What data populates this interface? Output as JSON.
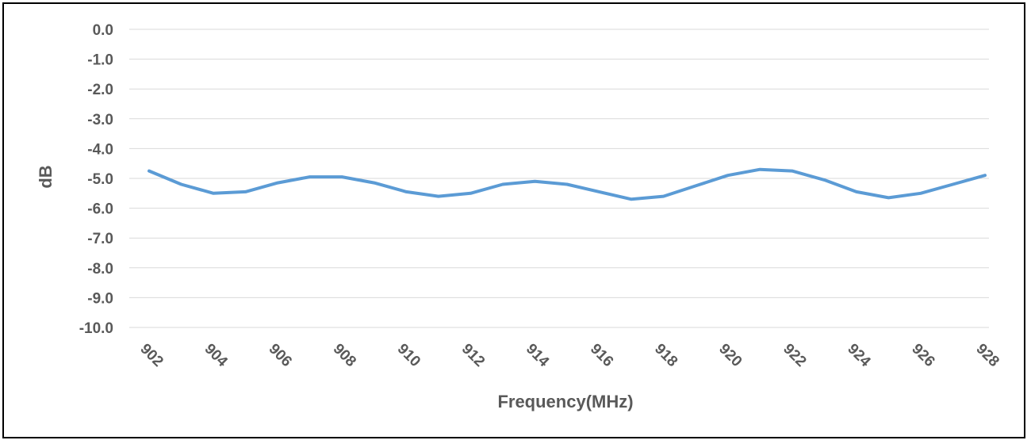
{
  "chart_data": {
    "type": "line",
    "title": "",
    "xlabel": "Frequency(MHz)",
    "ylabel": "dB",
    "xlim": [
      902,
      928
    ],
    "ylim": [
      -10,
      0
    ],
    "y_ticks": [
      0,
      -1,
      -2,
      -3,
      -4,
      -5,
      -6,
      -7,
      -8,
      -9,
      -10
    ],
    "y_tick_labels": [
      "0.0",
      "-1.0",
      "-2.0",
      "-3.0",
      "-4.0",
      "-5.0",
      "-6.0",
      "-7.0",
      "-8.0",
      "-9.0",
      "-10.0"
    ],
    "x_ticks": [
      902,
      904,
      906,
      908,
      910,
      912,
      914,
      916,
      918,
      920,
      922,
      924,
      926,
      928
    ],
    "x_tick_labels": [
      "902",
      "904",
      "906",
      "908",
      "910",
      "912",
      "914",
      "916",
      "918",
      "920",
      "922",
      "924",
      "926",
      "928"
    ],
    "grid": true,
    "legend": "none",
    "series": [
      {
        "color": "#5B9BD5",
        "x": [
          902,
          903,
          904,
          905,
          906,
          907,
          908,
          909,
          910,
          911,
          912,
          913,
          914,
          915,
          916,
          917,
          918,
          919,
          920,
          921,
          922,
          923,
          924,
          925,
          926,
          927,
          928
        ],
        "values": [
          -4.75,
          -5.2,
          -5.5,
          -5.45,
          -5.15,
          -4.95,
          -4.95,
          -5.15,
          -5.45,
          -5.6,
          -5.5,
          -5.2,
          -5.1,
          -5.2,
          -5.45,
          -5.7,
          -5.6,
          -5.25,
          -4.9,
          -4.7,
          -4.75,
          -5.05,
          -5.45,
          -5.65,
          -5.5,
          -5.2,
          -4.9
        ]
      }
    ]
  }
}
